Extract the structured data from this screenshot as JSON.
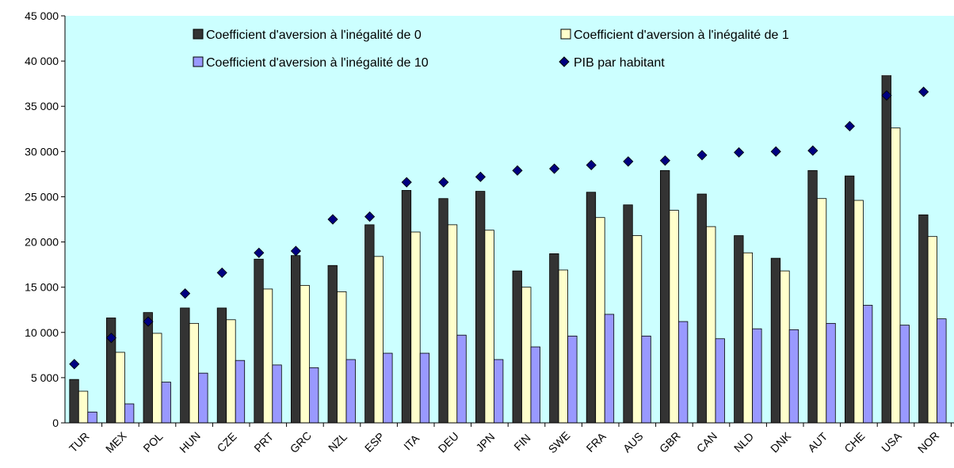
{
  "chart_data": {
    "type": "bar",
    "title": "",
    "xlabel": "",
    "ylabel": "",
    "ylim": [
      0,
      45000
    ],
    "yticks": [
      "0",
      "5 000",
      "10 000",
      "15 000",
      "20 000",
      "25 000",
      "30 000",
      "35 000",
      "40 000",
      "45 000"
    ],
    "grid": false,
    "legend_position": "top",
    "categories": [
      "TUR",
      "MEX",
      "POL",
      "HUN",
      "CZE",
      "PRT",
      "GRC",
      "NZL",
      "ESP",
      "ITA",
      "DEU",
      "JPN",
      "FIN",
      "SWE",
      "FRA",
      "AUS",
      "GBR",
      "CAN",
      "NLD",
      "DNK",
      "AUT",
      "CHE",
      "USA",
      "NOR"
    ],
    "series": [
      {
        "name": "Coefficient d'aversion à l'inégalité de 0",
        "kind": "bar",
        "color": "#333333",
        "values": [
          4800,
          11600,
          12200,
          12700,
          12700,
          18100,
          18500,
          17400,
          21900,
          25700,
          24800,
          25600,
          16800,
          18700,
          25500,
          24100,
          27900,
          25300,
          20700,
          18200,
          27900,
          27300,
          40500,
          23000
        ]
      },
      {
        "name": "Coefficient d'aversion à l'inégalité de 1",
        "kind": "bar",
        "color": "#ffffcc",
        "values": [
          3500,
          7800,
          9900,
          11000,
          11400,
          14800,
          15200,
          14500,
          18400,
          21100,
          21900,
          21300,
          15000,
          16900,
          22700,
          20700,
          23500,
          21700,
          18800,
          16800,
          24800,
          24600,
          32600,
          20600
        ]
      },
      {
        "name": "Coefficient d'aversion à l'inégalité de 10",
        "kind": "bar",
        "color": "#9999ff",
        "values": [
          1200,
          2100,
          4500,
          5500,
          6900,
          6400,
          6100,
          7000,
          7700,
          7700,
          9700,
          7000,
          8400,
          9600,
          12000,
          9600,
          11200,
          9300,
          10400,
          10300,
          11000,
          13000,
          10800,
          11500
        ]
      },
      {
        "name": "PIB par habitant",
        "kind": "marker",
        "color": "#000080",
        "values": [
          6500,
          9400,
          11200,
          14300,
          16600,
          18800,
          19000,
          22500,
          22800,
          26600,
          26600,
          27200,
          27900,
          28100,
          28500,
          28900,
          29000,
          29600,
          29900,
          30000,
          30100,
          32800,
          36200,
          36600
        ]
      }
    ]
  },
  "colors": {
    "plot_background": "#ccffff",
    "axis": "#000000"
  }
}
